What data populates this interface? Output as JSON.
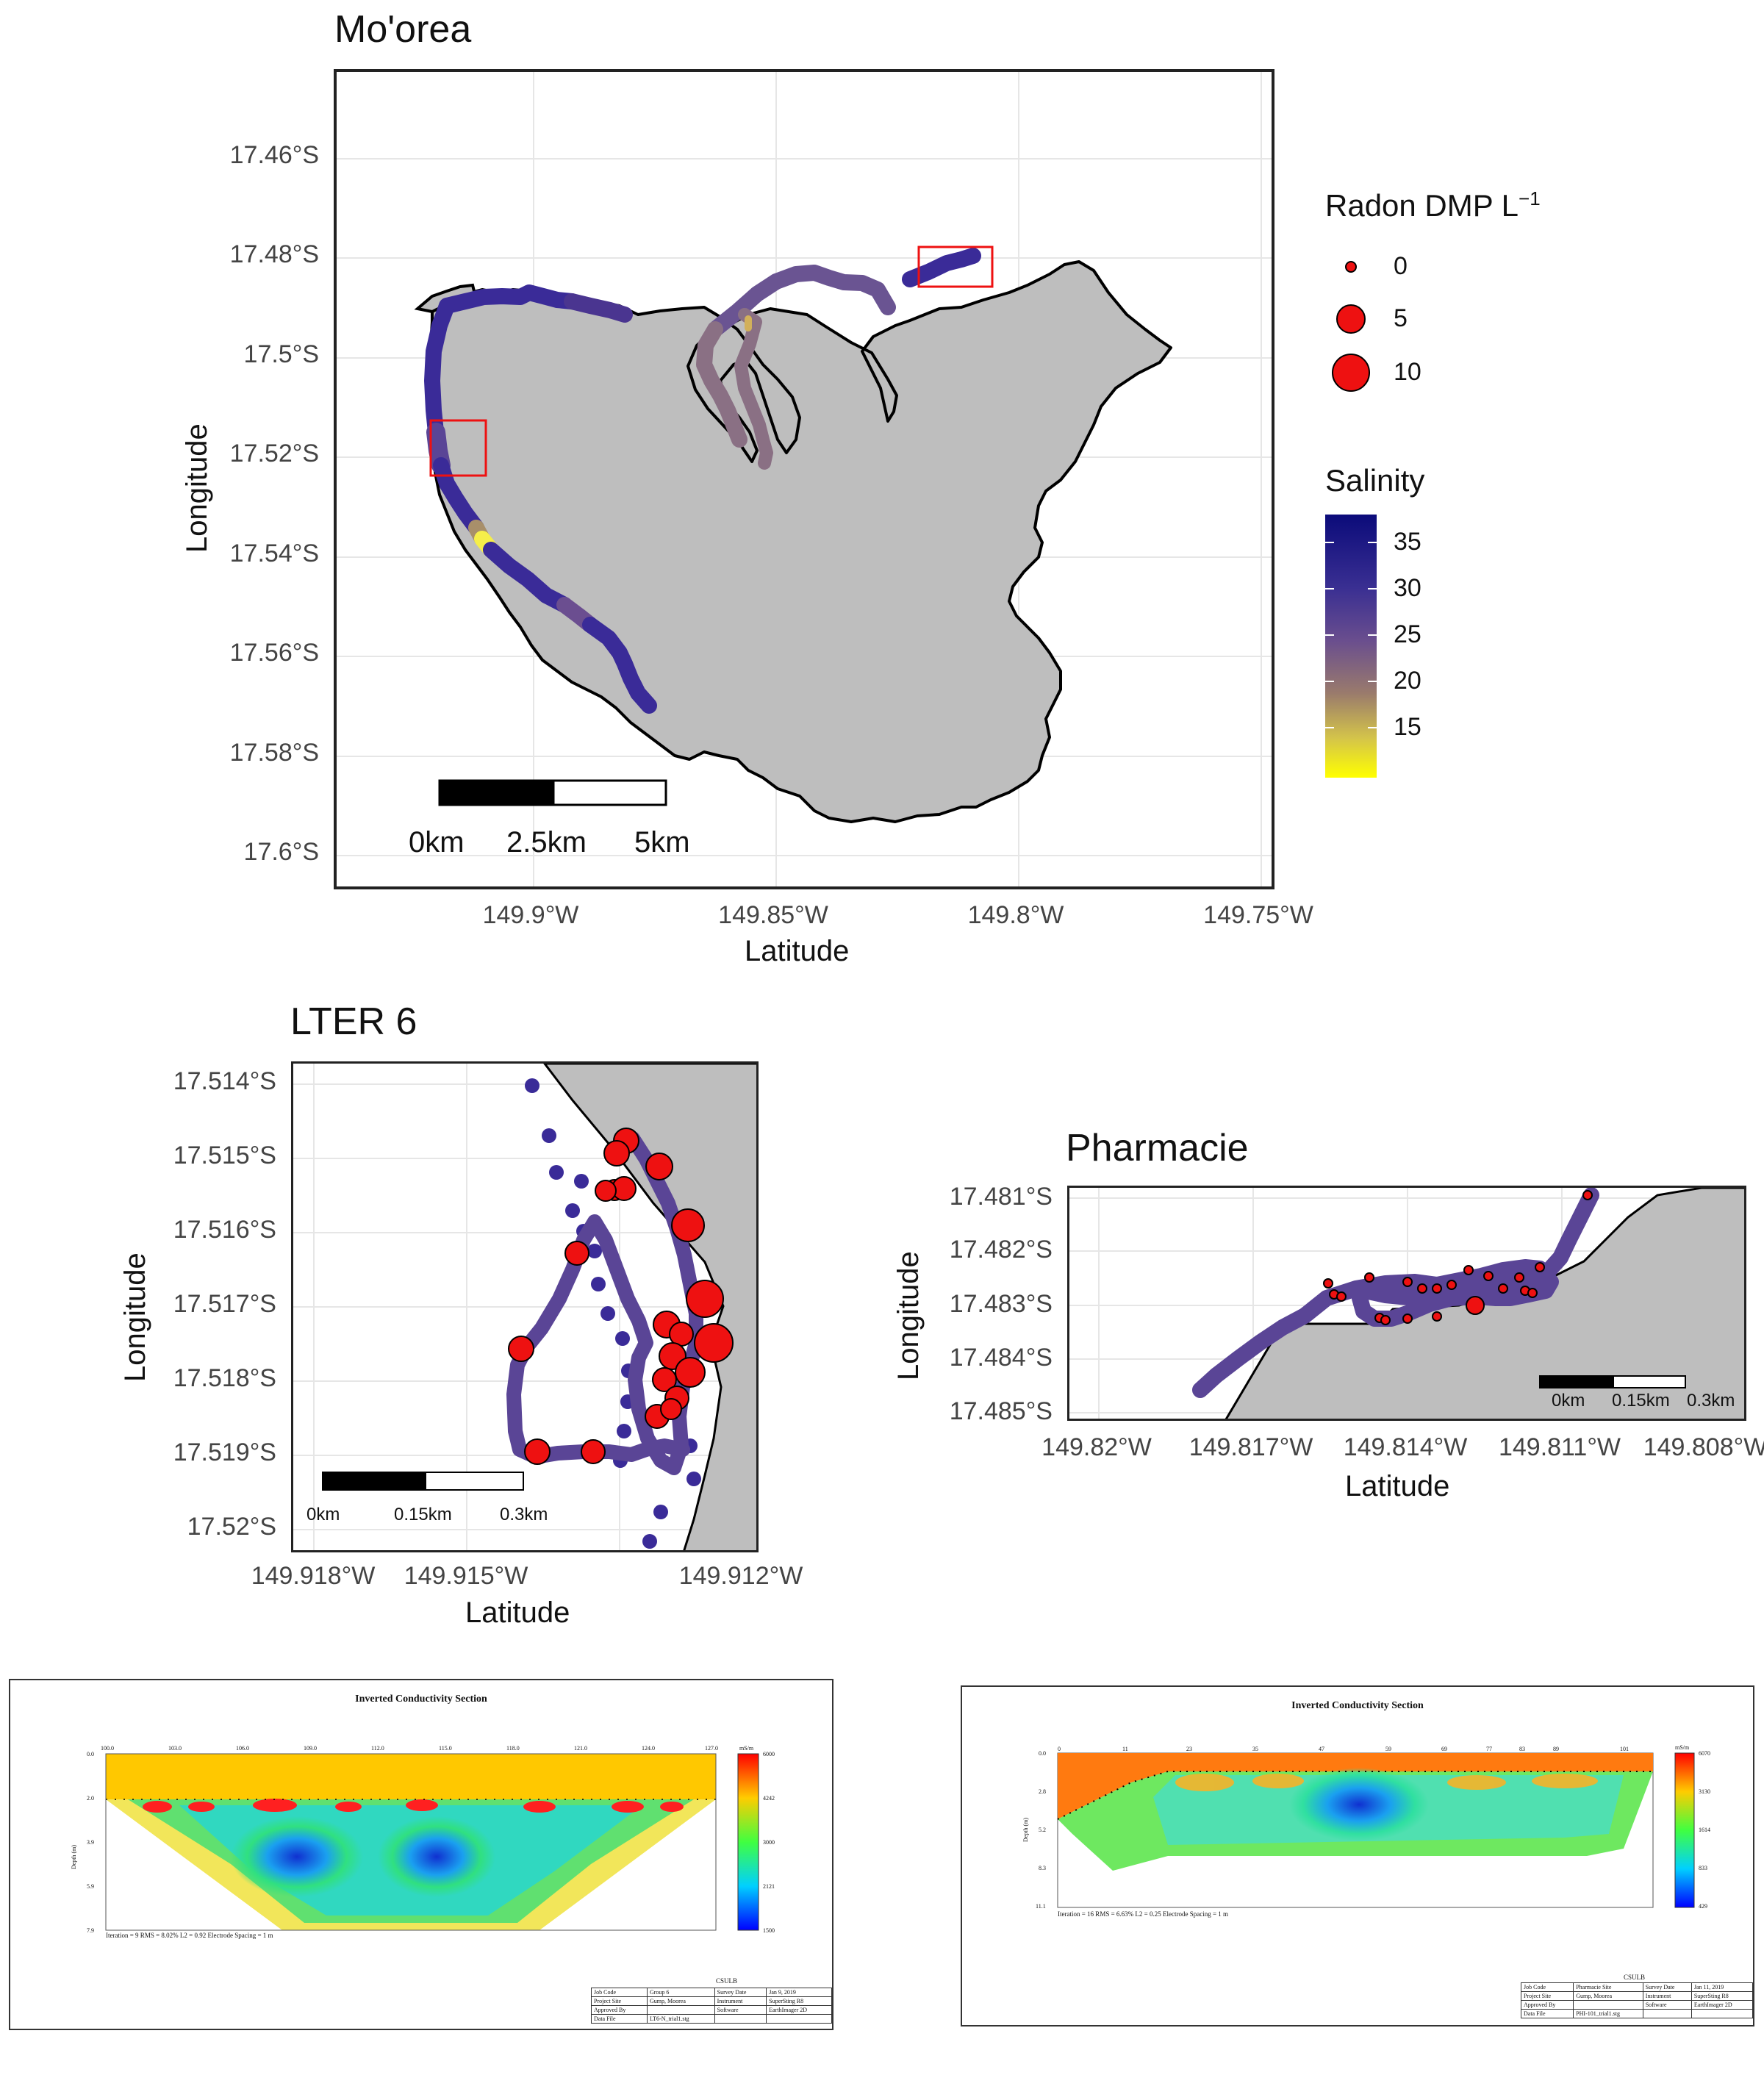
{
  "main_map": {
    "title": "Mo'orea",
    "x_axis_title": "Latitude",
    "y_axis_title": "Longitude",
    "y_ticks": [
      "17.46°S",
      "17.48°S",
      "17.5°S",
      "17.52°S",
      "17.54°S",
      "17.56°S",
      "17.58°S",
      "17.6°S"
    ],
    "x_ticks": [
      "149.9°W",
      "149.85°W",
      "149.8°W",
      "149.75°W"
    ],
    "scale_labels": [
      "0km",
      "2.5km",
      "5km"
    ]
  },
  "legend": {
    "radon_title": "Radon DMP L",
    "radon_sup": "−1",
    "radon_values": [
      "0",
      "5",
      "10"
    ],
    "salinity_title": "Salinity",
    "salinity_values": [
      "35",
      "30",
      "25",
      "20",
      "15"
    ],
    "salinity_colors": [
      "#0b0b7a",
      "#3a2f92",
      "#6a4e8e",
      "#9a7b6c",
      "#d4c44a",
      "#ffff00"
    ]
  },
  "lter6": {
    "title": "LTER 6",
    "x_axis_title": "Latitude",
    "y_axis_title": "Longitude",
    "y_ticks": [
      "17.514°S",
      "17.515°S",
      "17.516°S",
      "17.517°S",
      "17.518°S",
      "17.519°S",
      "17.52°S"
    ],
    "x_ticks": [
      "149.918°W",
      "149.915°W",
      "149.912°W"
    ],
    "scale_labels": [
      "0km",
      "0.15km",
      "0.3km"
    ]
  },
  "pharmacie": {
    "title": "Pharmacie",
    "x_axis_title": "Latitude",
    "y_axis_title": "Longitude",
    "y_ticks": [
      "17.481°S",
      "17.482°S",
      "17.483°S",
      "17.484°S",
      "17.485°S"
    ],
    "x_ticks": [
      "149.82°W",
      "149.817°W",
      "149.814°W",
      "149.811°W",
      "149.808°W"
    ],
    "scale_labels": [
      "0km",
      "0.15km",
      "0.3km"
    ]
  },
  "section_left": {
    "title": "Inverted Conductivity Section",
    "top_ticks": [
      "100.0",
      "103.0",
      "106.0",
      "109.0",
      "112.0",
      "115.0",
      "118.0",
      "121.0",
      "124.0",
      "127.0"
    ],
    "depth_ticks": [
      "0.0",
      "2.0",
      "3.9",
      "5.9",
      "7.9"
    ],
    "depth_label": "Depth (m)",
    "unit": "mS/m",
    "scale_values": [
      "6000",
      "4242",
      "3000",
      "2121",
      "1500"
    ],
    "note": "Iteration = 9    RMS = 8.02%    L2 = 0.92    Electrode Spacing = 1 m",
    "block_header": "CSULB",
    "rows": [
      [
        "Job Code",
        "Group 6",
        "Survey Date",
        "Jan 9, 2019"
      ],
      [
        "Project Site",
        "Gump, Moorea",
        "Instrument",
        "SuperSting R8"
      ],
      [
        "Approved By",
        "",
        "Software",
        "EarthImager 2D"
      ],
      [
        "Data File",
        "LT6-N_trial1.stg",
        "",
        ""
      ]
    ]
  },
  "section_right": {
    "title": "Inverted Conductivity Section",
    "top_ticks": [
      "0",
      "11",
      "23",
      "35",
      "47",
      "59",
      "69",
      "77",
      "83",
      "89",
      "101"
    ],
    "depth_ticks": [
      "0.0",
      "2.8",
      "5.2",
      "8.3",
      "11.1"
    ],
    "depth_label": "Depth (m)",
    "unit": "mS/m",
    "scale_values": [
      "6070",
      "3130",
      "1614",
      "833",
      "429"
    ],
    "note": "Iteration = 16    RMS = 6.63%    L2 = 0.25    Electrode Spacing = 1 m",
    "block_header": "CSULB",
    "rows": [
      [
        "Job Code",
        "Pharmacie Site",
        "Survey Date",
        "Jan 11, 2019"
      ],
      [
        "Project Site",
        "Gump, Moorea",
        "Instrument",
        "SuperSting R8"
      ],
      [
        "Approved By",
        "",
        "Software",
        "EarthImager 2D"
      ],
      [
        "Data File",
        "PHI-101_trial1.stg",
        "",
        ""
      ]
    ]
  }
}
